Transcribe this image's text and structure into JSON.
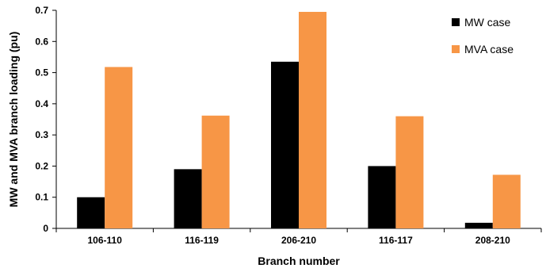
{
  "chart_data": {
    "type": "bar",
    "categories": [
      "106-110",
      "116-119",
      "206-210",
      "116-117",
      "208-210"
    ],
    "series": [
      {
        "name": "MW case",
        "color": "#000000",
        "values": [
          0.1,
          0.19,
          0.535,
          0.2,
          0.018
        ]
      },
      {
        "name": "MVA case",
        "color": "#F79646",
        "values": [
          0.518,
          0.362,
          0.695,
          0.36,
          0.172
        ]
      }
    ],
    "title": "",
    "xlabel": "Branch  number",
    "ylabel": "MW and MVA branch loading (pu)",
    "ylim": [
      0,
      0.7
    ],
    "yticks": [
      "0",
      "0.1",
      "0.2",
      "0.3",
      "0.4",
      "0.5",
      "0.6",
      "0.7"
    ],
    "grid": false,
    "legend_position": "top-right"
  }
}
